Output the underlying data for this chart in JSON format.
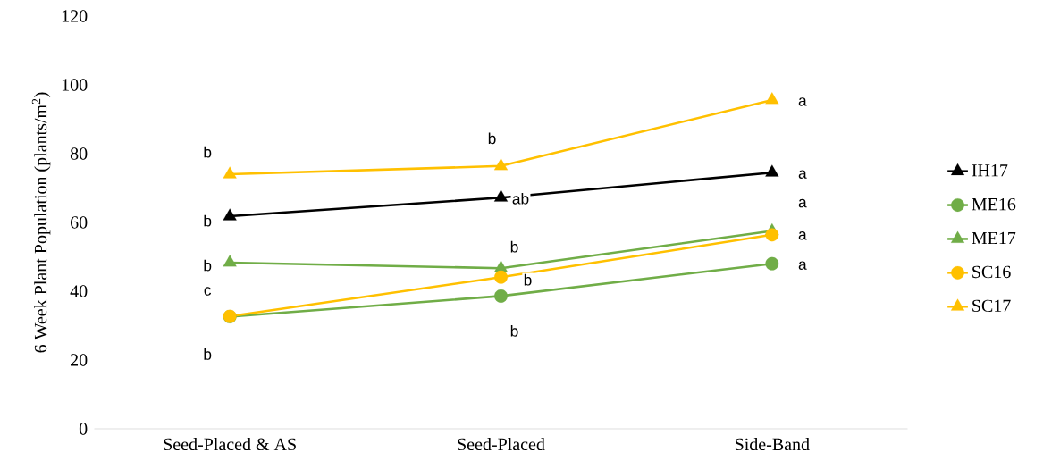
{
  "chart_data": {
    "type": "line",
    "ylabel": "6 Week Plant Population (plants/m$^{2}$)",
    "categories": [
      "Seed-Placed & AS",
      "Seed-Placed",
      "Side-Band"
    ],
    "series": [
      {
        "name": "IH17",
        "color": "#000000",
        "marker": "triangle",
        "values": [
          61.8,
          67.2,
          74.5
        ]
      },
      {
        "name": "ME16",
        "color": "#70ad47",
        "marker": "circle",
        "values": [
          32.6,
          38.6,
          48.0
        ]
      },
      {
        "name": "ME17",
        "color": "#70ad47",
        "marker": "triangle",
        "values": [
          48.3,
          46.7,
          57.5
        ]
      },
      {
        "name": "SC16",
        "color": "#ffc000",
        "marker": "circle",
        "values": [
          32.7,
          44.1,
          56.4
        ]
      },
      {
        "name": "SC17",
        "color": "#ffc000",
        "marker": "triangle",
        "values": [
          74.0,
          76.4,
          95.6
        ]
      }
    ],
    "ylim": [
      0,
      120
    ],
    "yticks": [
      0,
      20,
      40,
      60,
      80,
      100,
      120
    ],
    "grid": false,
    "legend": "right",
    "annotations": [
      {
        "text": "b",
        "x": "Seed-Placed & AS",
        "y": 74.0
      },
      {
        "text": "b",
        "x": "Seed-Placed & AS",
        "y": 61.8
      },
      {
        "text": "b",
        "x": "Seed-Placed & AS",
        "y": 48.3
      },
      {
        "text": "c",
        "x": "Seed-Placed & AS",
        "y": 32.7
      },
      {
        "text": "b",
        "x": "Seed-Placed & AS",
        "y": 32.6
      },
      {
        "text": "b",
        "x": "Seed-Placed",
        "y": 76.4
      },
      {
        "text": "ab",
        "x": "Seed-Placed",
        "y": 67.2
      },
      {
        "text": "b",
        "x": "Seed-Placed",
        "y": 46.7
      },
      {
        "text": "b",
        "x": "Seed-Placed",
        "y": 44.1
      },
      {
        "text": "b",
        "x": "Seed-Placed",
        "y": 38.6
      },
      {
        "text": "a",
        "x": "Side-Band",
        "y": 95.6
      },
      {
        "text": "a",
        "x": "Side-Band",
        "y": 74.5
      },
      {
        "text": "a",
        "x": "Side-Band",
        "y": 57.5
      },
      {
        "text": "a",
        "x": "Side-Band",
        "y": 56.4
      },
      {
        "text": "a",
        "x": "Side-Band",
        "y": 48.0
      }
    ]
  }
}
